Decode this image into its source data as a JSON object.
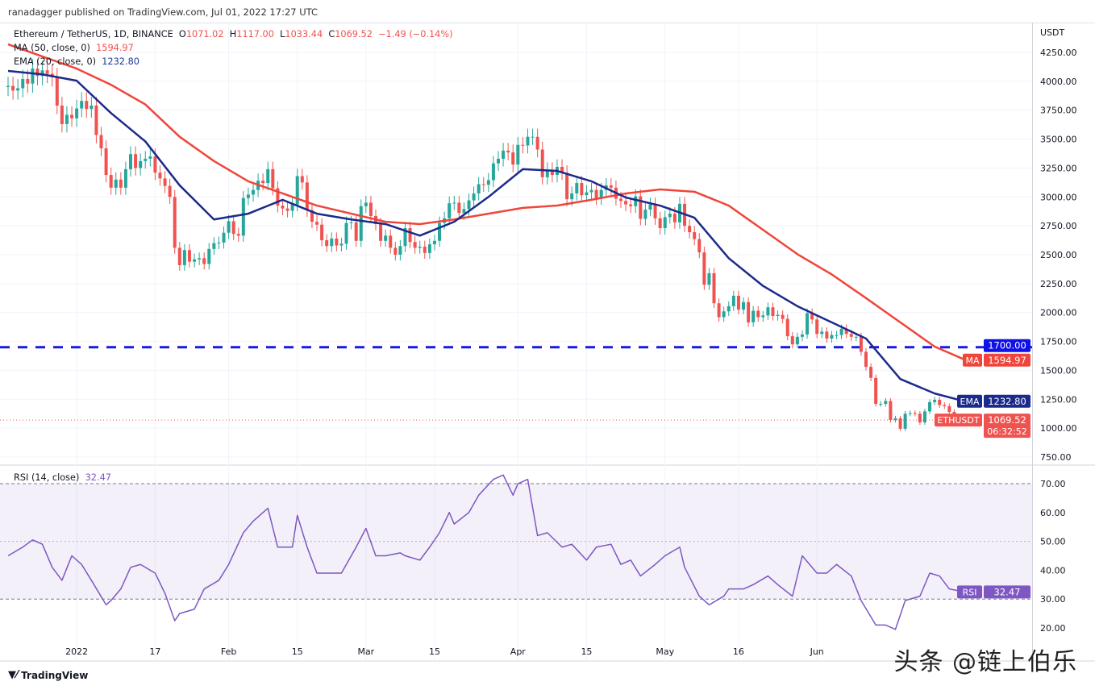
{
  "published": "ranadagger published on TradingView.com, Jul 01, 2022 17:27 UTC",
  "legend": {
    "symbol": "Ethereum / TetherUS, 1D, BINANCE",
    "o_label": "O",
    "o": "1071.02",
    "h_label": "H",
    "h": "1117.00",
    "l_label": "L",
    "l": "1033.44",
    "c_label": "C",
    "c": "1069.52",
    "change": "−1.49 (−0.14%)",
    "ma_label": "MA (50, close, 0)",
    "ma_value": "1594.97",
    "ema_label": "EMA (20, close, 0)",
    "ema_value": "1232.80",
    "rsi_label": "RSI (14, close)",
    "rsi_value": "32.47"
  },
  "axis": {
    "currency": "USDT",
    "hline_label": "1700.00",
    "ma_tag": "MA",
    "ma_price": "1594.97",
    "ema_tag": "EMA",
    "ema_price": "1232.80",
    "sym_tag": "ETHUSDT",
    "last_price": "1069.52",
    "countdown": "06:32:52",
    "rsi_tag": "RSI",
    "rsi_price": "32.47"
  },
  "footer": {
    "brand": "TradingView"
  },
  "watermark": "头条 @链上伯乐",
  "colors": {
    "up": "#26a69a",
    "down": "#ef5350",
    "ma": "#f0453a",
    "ema": "#1b2a8c",
    "rsi": "#7e57c2",
    "hline": "#1a1ae0"
  },
  "chart_data": {
    "type": "candlestick",
    "title": "Ethereum / TetherUS, 1D, BINANCE",
    "start_date": "2021-12-18",
    "price_ticks": [
      750,
      1000,
      1250,
      1500,
      1750,
      2000,
      2250,
      2500,
      2750,
      3000,
      3250,
      3500,
      3750,
      4000,
      4250
    ],
    "price_tick_labels": [
      "750.00",
      "1000.00",
      "1250.00",
      "1500.00",
      "1750.00",
      "2000.00",
      "2250.00",
      "2500.00",
      "2750.00",
      "3000.00",
      "3250.00",
      "3500.00",
      "3750.00",
      "4000.00",
      "4250.00"
    ],
    "ylim": [
      700,
      4450
    ],
    "horizontal_line": 1700,
    "x_ticks": [
      {
        "day": 14,
        "label": "2022"
      },
      {
        "day": 30,
        "label": "17"
      },
      {
        "day": 45,
        "label": "Feb"
      },
      {
        "day": 59,
        "label": "15"
      },
      {
        "day": 73,
        "label": "Mar"
      },
      {
        "day": 87,
        "label": "15"
      },
      {
        "day": 104,
        "label": "Apr"
      },
      {
        "day": 118,
        "label": "15"
      },
      {
        "day": 134,
        "label": "May"
      },
      {
        "day": 149,
        "label": "16"
      },
      {
        "day": 165,
        "label": "Jun"
      }
    ],
    "close": [
      3960,
      3920,
      3940,
      4020,
      3980,
      4110,
      4045,
      4095,
      4065,
      4035,
      3790,
      3630,
      3710,
      3680,
      3765,
      3830,
      3760,
      3790,
      3535,
      3420,
      3190,
      3080,
      3150,
      3080,
      3240,
      3370,
      3250,
      3310,
      3330,
      3350,
      3210,
      3160,
      3095,
      3000,
      2560,
      2410,
      2540,
      2440,
      2460,
      2470,
      2420,
      2550,
      2600,
      2605,
      2690,
      2790,
      2680,
      2665,
      2990,
      3020,
      3060,
      3140,
      3120,
      3240,
      3075,
      2925,
      2900,
      2880,
      2935,
      3180,
      3125,
      2885,
      2785,
      2760,
      2625,
      2575,
      2640,
      2580,
      2595,
      2775,
      2780,
      2620,
      2920,
      2950,
      2835,
      2765,
      2620,
      2665,
      2560,
      2500,
      2575,
      2730,
      2610,
      2560,
      2570,
      2515,
      2590,
      2620,
      2775,
      2815,
      2945,
      2950,
      2860,
      2895,
      2970,
      3030,
      3110,
      3105,
      3145,
      3290,
      3330,
      3400,
      3385,
      3280,
      3450,
      3445,
      3520,
      3520,
      3410,
      3170,
      3235,
      3190,
      3260,
      3210,
      2980,
      3030,
      3120,
      3015,
      3040,
      3060,
      2990,
      3060,
      3100,
      3080,
      2985,
      2965,
      2935,
      2920,
      3005,
      2810,
      2890,
      2935,
      2815,
      2730,
      2825,
      2855,
      2780,
      2940,
      2750,
      2695,
      2635,
      2520,
      2240,
      2340,
      2080,
      1960,
      2010,
      2055,
      2145,
      2025,
      2090,
      1915,
      2015,
      1960,
      1975,
      2045,
      1970,
      1980,
      1945,
      1795,
      1725,
      1790,
      1810,
      1995,
      1940,
      1815,
      1835,
      1775,
      1805,
      1805,
      1860,
      1815,
      1790,
      1790,
      1660,
      1530,
      1435,
      1210,
      1210,
      1235,
      1070,
      1085,
      995,
      1125,
      1130,
      1125,
      1050,
      1145,
      1225,
      1245,
      1200,
      1190,
      1140,
      1100,
      1070,
      1069.52
    ],
    "first_open": 3950,
    "ma50": {
      "days": [
        0,
        7,
        14,
        21,
        28,
        35,
        42,
        49,
        56,
        63,
        70,
        77,
        84,
        91,
        98,
        105,
        112,
        119,
        126,
        133,
        140,
        147,
        154,
        161,
        168,
        175,
        182,
        189,
        195
      ],
      "values": [
        4320,
        4215,
        4110,
        3970,
        3800,
        3520,
        3310,
        3135,
        3030,
        2925,
        2855,
        2785,
        2765,
        2805,
        2855,
        2905,
        2925,
        2975,
        3030,
        3065,
        3045,
        2925,
        2715,
        2505,
        2330,
        2125,
        1915,
        1705,
        1595
      ]
    },
    "ema20": {
      "days": [
        0,
        7,
        14,
        21,
        28,
        35,
        42,
        49,
        56,
        63,
        70,
        77,
        84,
        91,
        98,
        105,
        112,
        119,
        126,
        133,
        140,
        147,
        154,
        161,
        168,
        175,
        182,
        189,
        195
      ],
      "values": [
        4090,
        4060,
        4005,
        3725,
        3480,
        3100,
        2805,
        2855,
        2975,
        2855,
        2805,
        2765,
        2665,
        2785,
        3000,
        3240,
        3225,
        3135,
        2995,
        2925,
        2820,
        2470,
        2230,
        2055,
        1915,
        1775,
        1425,
        1300,
        1233
      ]
    },
    "rsi": {
      "ticks": [
        20,
        30,
        40,
        50,
        60,
        70
      ],
      "tick_labels": [
        "20.00",
        "30.00",
        "40.00",
        "50.00",
        "60.00",
        "70.00"
      ],
      "band": [
        30,
        70
      ],
      "ylim": [
        15,
        77
      ],
      "days": [
        0,
        3,
        5,
        7,
        9,
        11,
        13,
        15,
        17,
        20,
        21,
        23,
        25,
        27,
        30,
        32,
        34,
        35,
        38,
        40,
        43,
        45,
        48,
        50,
        53,
        55,
        58,
        59,
        61,
        63,
        66,
        68,
        71,
        73,
        75,
        77,
        80,
        81,
        84,
        86,
        88,
        90,
        91,
        94,
        96,
        99,
        101,
        103,
        104,
        106,
        108,
        110,
        113,
        115,
        118,
        120,
        123,
        125,
        127,
        129,
        132,
        134,
        137,
        138,
        141,
        143,
        146,
        147,
        150,
        152,
        155,
        157,
        160,
        162,
        165,
        167,
        169,
        172,
        174,
        177,
        179,
        181,
        183,
        186,
        188,
        190,
        192,
        195
      ],
      "values": [
        45,
        48,
        50.5,
        49,
        41,
        36.5,
        45,
        42,
        36.5,
        28,
        29.5,
        33.5,
        41,
        42,
        39,
        32,
        22.5,
        25,
        26.5,
        33.5,
        36.5,
        42,
        53,
        57,
        61.5,
        48,
        48,
        59,
        48,
        39,
        39,
        39,
        48,
        54.5,
        45,
        45,
        46,
        45,
        43.5,
        48,
        53,
        60,
        56,
        60,
        66,
        71.5,
        73,
        66,
        70,
        71.5,
        52,
        53,
        48,
        49,
        43.5,
        48,
        49,
        42,
        43.5,
        38,
        42,
        45,
        48,
        41,
        31,
        28,
        31,
        33.5,
        33.5,
        35,
        38,
        35,
        31,
        45,
        39,
        39,
        42,
        38,
        29.5,
        21,
        21,
        19.5,
        29.5,
        31,
        39,
        38,
        33.5,
        32.5
      ]
    }
  }
}
